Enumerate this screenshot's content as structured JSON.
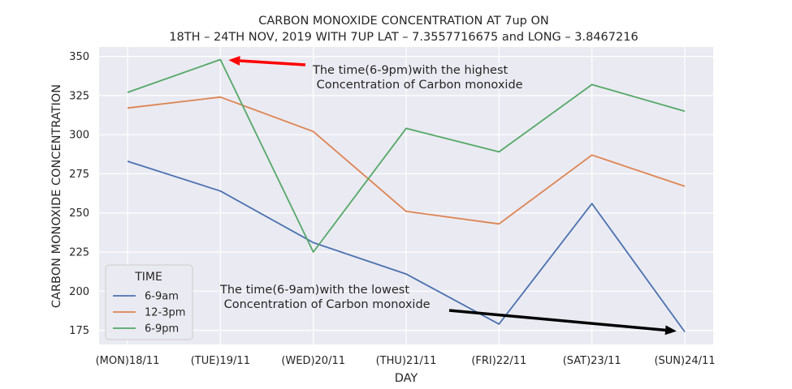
{
  "chart_data": {
    "type": "line",
    "title": [
      "CARBON MONOXIDE CONCENTRATION AT 7up ON",
      "18TH – 24TH NOV, 2019 WITH 7UP LAT – 7.3557716675 and LONG – 3.8467216"
    ],
    "xlabel": "DAY",
    "ylabel": "CARBON MONOXIDE CONCENTRATION",
    "categories": [
      "(MON)18/11",
      "(TUE)19/11",
      "(WED)20/11",
      "(THU)21/11",
      "(FRI)22/11",
      "(SAT)23/11",
      "(SUN)24/11"
    ],
    "ylim": [
      166,
      356
    ],
    "yticks": [
      175,
      200,
      225,
      250,
      275,
      300,
      325,
      350
    ],
    "grid": true,
    "legend": {
      "title": "TIME",
      "placement": "lower-left"
    },
    "series": [
      {
        "name": "6-9am",
        "color": "#4c72b0",
        "values": [
          283,
          264,
          231,
          211,
          179,
          256,
          174
        ]
      },
      {
        "name": "12-3pm",
        "color": "#dd8452",
        "values": [
          317,
          324,
          302,
          251,
          243,
          287,
          267
        ]
      },
      {
        "name": "6-9pm",
        "color": "#55a868",
        "values": [
          327,
          348,
          225,
          304,
          289,
          332,
          315
        ]
      }
    ],
    "annotations": [
      {
        "lines": [
          "The time(6-9pm)with the highest",
          " Concentration of Carbon monoxide"
        ],
        "arrow_color": "#ff0000",
        "points_to": {
          "category": "(TUE)19/11",
          "value": 348
        }
      },
      {
        "lines": [
          "The time(6-9am)with the lowest",
          " Concentration of Carbon monoxide"
        ],
        "arrow_color": "#000000",
        "points_to": {
          "category": "(SUN)24/11",
          "value": 174
        }
      }
    ]
  }
}
